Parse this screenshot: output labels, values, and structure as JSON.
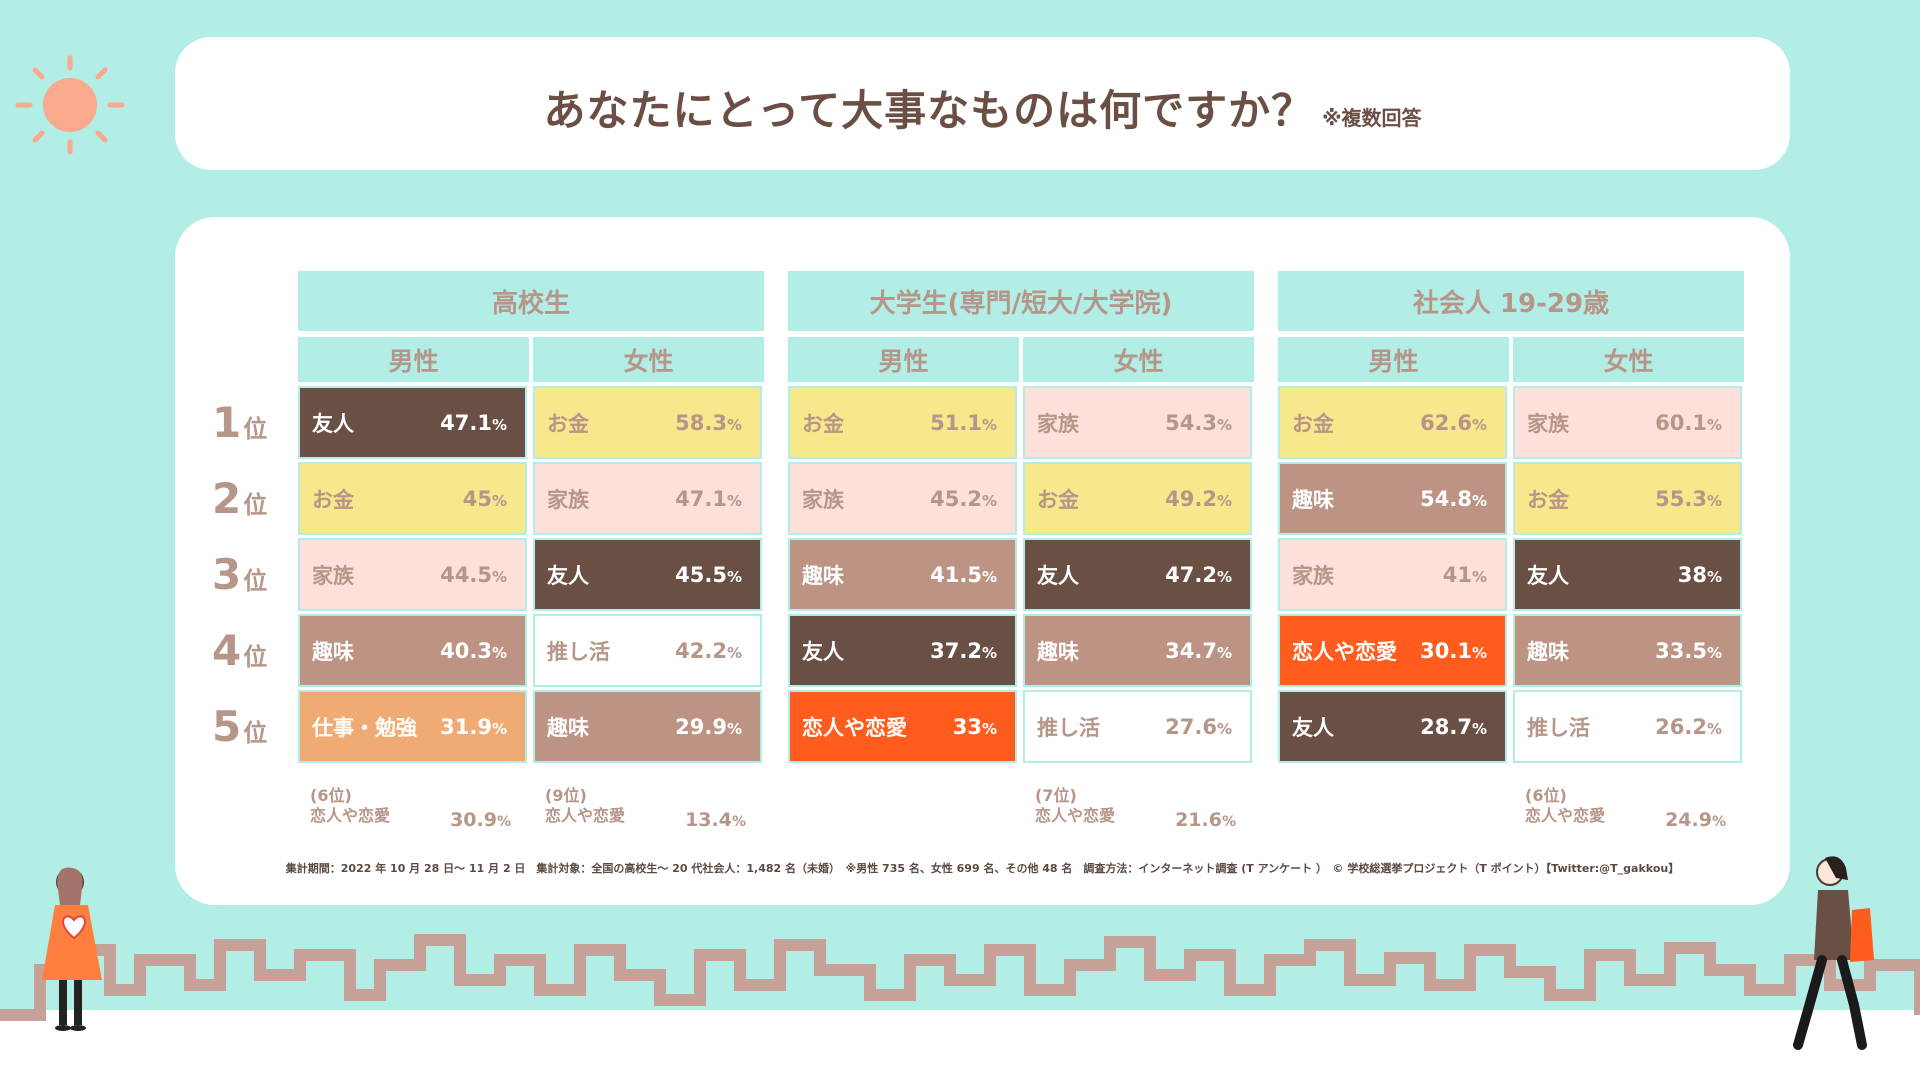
{
  "title": {
    "main": "あなたにとって大事なものは何ですか？",
    "note": "※複数回答"
  },
  "ranks": [
    {
      "num": "1",
      "suffix": "位"
    },
    {
      "num": "2",
      "suffix": "位"
    },
    {
      "num": "3",
      "suffix": "位"
    },
    {
      "num": "4",
      "suffix": "位"
    },
    {
      "num": "5",
      "suffix": "位"
    }
  ],
  "colors": {
    "友人": "#6a4f45",
    "お金": "#f7e88b",
    "家族": "#fce0d9",
    "趣味": "#bd9384",
    "推し活": "#ffffff",
    "仕事・勉強": "#f0ab75",
    "恋人や恋愛": "#ff5c1d"
  },
  "textColors": {
    "友人": "#ffffff",
    "お金": "#b7968a",
    "家族": "#b7968a",
    "趣味": "#ffffff",
    "推し活": "#b7968a",
    "仕事・勉強": "#ffffff",
    "恋人や恋愛": "#ffffff"
  },
  "chart_data": {
    "type": "table",
    "title": "あなたにとって大事なものは何ですか？",
    "groups": [
      {
        "name": "高校生",
        "columns": [
          {
            "name": "男性",
            "items": [
              {
                "label": "友人",
                "value": "47.1",
                "unit": "%"
              },
              {
                "label": "お金",
                "value": "45",
                "unit": "%"
              },
              {
                "label": "家族",
                "value": "44.5",
                "unit": "%"
              },
              {
                "label": "趣味",
                "value": "40.3",
                "unit": "%"
              },
              {
                "label": "仕事・勉強",
                "value": "31.9",
                "unit": "%"
              }
            ],
            "extra": null
          },
          {
            "name": "女性",
            "items": [
              {
                "label": "お金",
                "value": "58.3",
                "unit": "%"
              },
              {
                "label": "家族",
                "value": "47.1",
                "unit": "%"
              },
              {
                "label": "友人",
                "value": "45.5",
                "unit": "%"
              },
              {
                "label": "推し活",
                "value": "42.2",
                "unit": "%"
              },
              {
                "label": "趣味",
                "value": "29.9",
                "unit": "%"
              }
            ],
            "extra": null
          }
        ],
        "extras": [
          {
            "rank": "(6位)",
            "label": "恋人や恋愛",
            "value": "30.9",
            "unit": "%"
          },
          {
            "rank": "(9位)",
            "label": "恋人や恋愛",
            "value": "13.4",
            "unit": "%"
          }
        ]
      },
      {
        "name": "大学生(専門/短大/大学院)",
        "columns": [
          {
            "name": "男性",
            "items": [
              {
                "label": "お金",
                "value": "51.1",
                "unit": "%"
              },
              {
                "label": "家族",
                "value": "45.2",
                "unit": "%"
              },
              {
                "label": "趣味",
                "value": "41.5",
                "unit": "%"
              },
              {
                "label": "友人",
                "value": "37.2",
                "unit": "%"
              },
              {
                "label": "恋人や恋愛",
                "value": "33",
                "unit": "%"
              }
            ]
          },
          {
            "name": "女性",
            "items": [
              {
                "label": "家族",
                "value": "54.3",
                "unit": "%"
              },
              {
                "label": "お金",
                "value": "49.2",
                "unit": "%"
              },
              {
                "label": "友人",
                "value": "47.2",
                "unit": "%"
              },
              {
                "label": "趣味",
                "value": "34.7",
                "unit": "%"
              },
              {
                "label": "推し活",
                "value": "27.6",
                "unit": "%"
              }
            ]
          }
        ],
        "extras": [
          null,
          {
            "rank": "(7位)",
            "label": "恋人や恋愛",
            "value": "21.6",
            "unit": "%"
          }
        ]
      },
      {
        "name": "社会人 19-29歳",
        "columns": [
          {
            "name": "男性",
            "items": [
              {
                "label": "お金",
                "value": "62.6",
                "unit": "%"
              },
              {
                "label": "趣味",
                "value": "54.8",
                "unit": "%"
              },
              {
                "label": "家族",
                "value": "41",
                "unit": "%"
              },
              {
                "label": "恋人や恋愛",
                "value": "30.1",
                "unit": "%"
              },
              {
                "label": "友人",
                "value": "28.7",
                "unit": "%"
              }
            ]
          },
          {
            "name": "女性",
            "items": [
              {
                "label": "家族",
                "value": "60.1",
                "unit": "%"
              },
              {
                "label": "お金",
                "value": "55.3",
                "unit": "%"
              },
              {
                "label": "友人",
                "value": "38",
                "unit": "%"
              },
              {
                "label": "趣味",
                "value": "33.5",
                "unit": "%"
              },
              {
                "label": "推し活",
                "value": "26.2",
                "unit": "%"
              }
            ]
          }
        ],
        "extras": [
          null,
          {
            "rank": "(6位)",
            "label": "恋人や恋愛",
            "value": "24.9",
            "unit": "%"
          }
        ]
      }
    ]
  },
  "footer": "集計期間：2022 年 10 月 28 日〜 11 月 2 日　集計対象：全国の高校生〜 20 代社会人：1,482 名（未婚）　※男性 735 名、女性 699 名、その他 48 名　調査方法：インターネット調査 (T アンケート ）　© 学校総選挙プロジェクト（T ポイント）【Twitter:@T_gakkou】"
}
